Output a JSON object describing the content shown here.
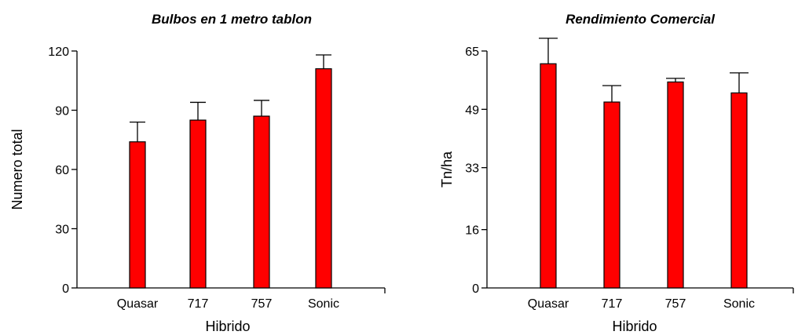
{
  "chart_data": [
    {
      "type": "bar",
      "title": "Bulbos en 1 metro tablon",
      "xlabel": "Hibrido",
      "ylabel": "Numero total",
      "categories": [
        "Quasar",
        "717",
        "757",
        "Sonic"
      ],
      "values": [
        74,
        85,
        87,
        111
      ],
      "error_upper": [
        84,
        94,
        95,
        118
      ],
      "ylim": [
        0,
        120
      ],
      "yticks": [
        0,
        30,
        60,
        90,
        120
      ],
      "bar_color": "#ff0000",
      "grid": false
    },
    {
      "type": "bar",
      "title": "Rendimiento Comercial",
      "xlabel": "Hibrido",
      "ylabel": "Tn/ha",
      "categories": [
        "Quasar",
        "717",
        "757",
        "Sonic"
      ],
      "values": [
        61.5,
        51,
        56.5,
        53.5
      ],
      "error_upper": [
        68.5,
        55.5,
        57.5,
        59
      ],
      "ylim": [
        0,
        65
      ],
      "yticks": [
        0,
        16,
        33,
        49,
        65
      ],
      "bar_color": "#ff0000",
      "grid": false
    }
  ]
}
